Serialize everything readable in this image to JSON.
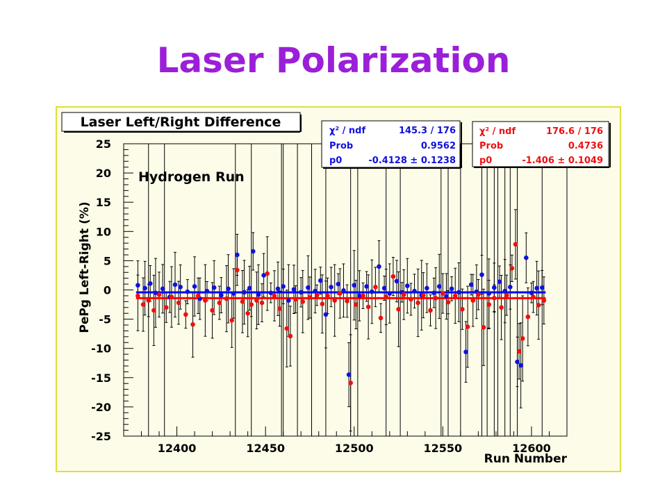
{
  "slide": {
    "title": "Laser Polarization"
  },
  "colors": {
    "title": "#9b1fd8",
    "frame_border": "#dede3c",
    "frame_bg": "#fcfce8",
    "series_blue": "#1010e0",
    "series_red": "#ee1010",
    "fit_blue": "#0000ff",
    "fit_red": "#ff0000"
  },
  "chart_data": {
    "type": "scatter",
    "title": "Laser Left/Right Difference",
    "annotation": "Hydrogen Run",
    "xlabel": "Run Number",
    "ylabel": "PePg Left-Right (%)",
    "xlim": [
      12370,
      12620
    ],
    "ylim": [
      -25,
      25
    ],
    "xticks": [
      "12400",
      "12450",
      "12500",
      "12550",
      "12600"
    ],
    "yticks": [
      "25",
      "20",
      "15",
      "10",
      "5",
      "0",
      "-5",
      "-10",
      "-15",
      "-20",
      "-25"
    ],
    "grid": false,
    "series": [
      {
        "color": "#1010e0",
        "fit_value": -0.4128,
        "stats_position": "top-center",
        "stats": {
          "chi2_label": "χ² / ndf",
          "chi2_value": "145.3 / 176",
          "prob_label": "Prob",
          "prob_value": "0.9562",
          "p0_label": "p0",
          "p0_value": "-0.4128 ± 0.1238"
        }
      },
      {
        "color": "#ee1010",
        "fit_value": -1.406,
        "stats_position": "top-right",
        "stats": {
          "chi2_label": "χ² / ndf",
          "chi2_value": "176.6 / 176",
          "prob_label": "Prob",
          "prob_value": "0.4736",
          "p0_label": "p0",
          "p0_value": "-1.406 ± 0.1049"
        }
      }
    ],
    "blue_points": [
      [
        12378,
        0.8
      ],
      [
        12382,
        0.3
      ],
      [
        12385,
        1.1
      ],
      [
        12388,
        -0.5
      ],
      [
        12392,
        0.2
      ],
      [
        12396,
        -1.2
      ],
      [
        12399,
        0.9
      ],
      [
        12402,
        0.5
      ],
      [
        12406,
        -0.3
      ],
      [
        12410,
        0.6
      ],
      [
        12413,
        -1.5
      ],
      [
        12417,
        -0.2
      ],
      [
        12421,
        0.4
      ],
      [
        12425,
        -0.9
      ],
      [
        12429,
        0.2
      ],
      [
        12432,
        -0.6
      ],
      [
        12434,
        6.0
      ],
      [
        12438,
        -0.4
      ],
      [
        12441,
        0.3
      ],
      [
        12443,
        6.6
      ],
      [
        12446,
        -0.8
      ],
      [
        12449,
        2.5
      ],
      [
        12453,
        -0.5
      ],
      [
        12457,
        0.2
      ],
      [
        12460,
        0.6
      ],
      [
        12463,
        -1.8
      ],
      [
        12466,
        0.1
      ],
      [
        12470,
        -0.4
      ],
      [
        12474,
        0.4
      ],
      [
        12478,
        -0.2
      ],
      [
        12481,
        1.6
      ],
      [
        12484,
        -4.2
      ],
      [
        12487,
        0.5
      ],
      [
        12491,
        1.0
      ],
      [
        12494,
        -0.1
      ],
      [
        12497,
        -14.5
      ],
      [
        12500,
        0.8
      ],
      [
        12503,
        -1.0
      ],
      [
        12507,
        0.6
      ],
      [
        12510,
        -0.3
      ],
      [
        12514,
        4.0
      ],
      [
        12517,
        0.3
      ],
      [
        12520,
        -0.6
      ],
      [
        12524,
        1.5
      ],
      [
        12527,
        -0.4
      ],
      [
        12530,
        0.7
      ],
      [
        12534,
        -0.2
      ],
      [
        12538,
        -0.9
      ],
      [
        12541,
        0.3
      ],
      [
        12545,
        -0.5
      ],
      [
        12548,
        0.6
      ],
      [
        12552,
        -1.1
      ],
      [
        12555,
        0.2
      ],
      [
        12559,
        -0.4
      ],
      [
        12563,
        -10.6
      ],
      [
        12566,
        0.9
      ],
      [
        12569,
        -0.3
      ],
      [
        12572,
        2.6
      ],
      [
        12576,
        -0.6
      ],
      [
        12579,
        0.4
      ],
      [
        12582,
        1.4
      ],
      [
        12585,
        -0.2
      ],
      [
        12588,
        0.5
      ],
      [
        12592,
        -12.3
      ],
      [
        12594,
        -12.9
      ],
      [
        12597,
        5.5
      ],
      [
        12600,
        -0.5
      ],
      [
        12603,
        0.3
      ],
      [
        12606,
        0.4
      ]
    ],
    "red_points": [
      [
        12378,
        -1.0
      ],
      [
        12381,
        -2.5
      ],
      [
        12384,
        -1.8
      ],
      [
        12387,
        -3.5
      ],
      [
        12390,
        -0.8
      ],
      [
        12394,
        -3.0
      ],
      [
        12397,
        -1.2
      ],
      [
        12401,
        -2.2
      ],
      [
        12405,
        -4.2
      ],
      [
        12409,
        -5.9
      ],
      [
        12412,
        -1.0
      ],
      [
        12416,
        -1.8
      ],
      [
        12420,
        -3.5
      ],
      [
        12424,
        -2.2
      ],
      [
        12428,
        -1.5
      ],
      [
        12431,
        -5.2
      ],
      [
        12434,
        3.4
      ],
      [
        12437,
        -2.0
      ],
      [
        12440,
        -4.0
      ],
      [
        12442,
        -2.5
      ],
      [
        12445,
        -1.8
      ],
      [
        12448,
        -2.2
      ],
      [
        12451,
        2.8
      ],
      [
        12455,
        -1.0
      ],
      [
        12458,
        -3.2
      ],
      [
        12462,
        -6.6
      ],
      [
        12464,
        -7.9
      ],
      [
        12467,
        -1.6
      ],
      [
        12471,
        -2.0
      ],
      [
        12475,
        -1.3
      ],
      [
        12479,
        -0.9
      ],
      [
        12482,
        -2.4
      ],
      [
        12485,
        -1.0
      ],
      [
        12489,
        -1.8
      ],
      [
        12492,
        -0.6
      ],
      [
        12496,
        -1.9
      ],
      [
        12498,
        -15.9
      ],
      [
        12501,
        -2.5
      ],
      [
        12505,
        -1.0
      ],
      [
        12508,
        -2.9
      ],
      [
        12512,
        0.5
      ],
      [
        12515,
        -4.8
      ],
      [
        12518,
        -1.2
      ],
      [
        12522,
        2.3
      ],
      [
        12525,
        -3.3
      ],
      [
        12528,
        -0.8
      ],
      [
        12532,
        -1.6
      ],
      [
        12536,
        -2.2
      ],
      [
        12539,
        -0.9
      ],
      [
        12543,
        -3.5
      ],
      [
        12546,
        -1.4
      ],
      [
        12550,
        -0.6
      ],
      [
        12553,
        -2.1
      ],
      [
        12557,
        -1.0
      ],
      [
        12561,
        -3.3
      ],
      [
        12564,
        -6.3
      ],
      [
        12567,
        -1.8
      ],
      [
        12570,
        -0.8
      ],
      [
        12573,
        -6.4
      ],
      [
        12576,
        -2.5
      ],
      [
        12579,
        -1.4
      ],
      [
        12583,
        -3.0
      ],
      [
        12586,
        -0.9
      ],
      [
        12589,
        3.7
      ],
      [
        12591,
        7.8
      ],
      [
        12593,
        -10.5
      ],
      [
        12595,
        -8.3
      ],
      [
        12598,
        -4.6
      ],
      [
        12601,
        -1.2
      ],
      [
        12604,
        -2.6
      ],
      [
        12607,
        -1.8
      ]
    ]
  }
}
